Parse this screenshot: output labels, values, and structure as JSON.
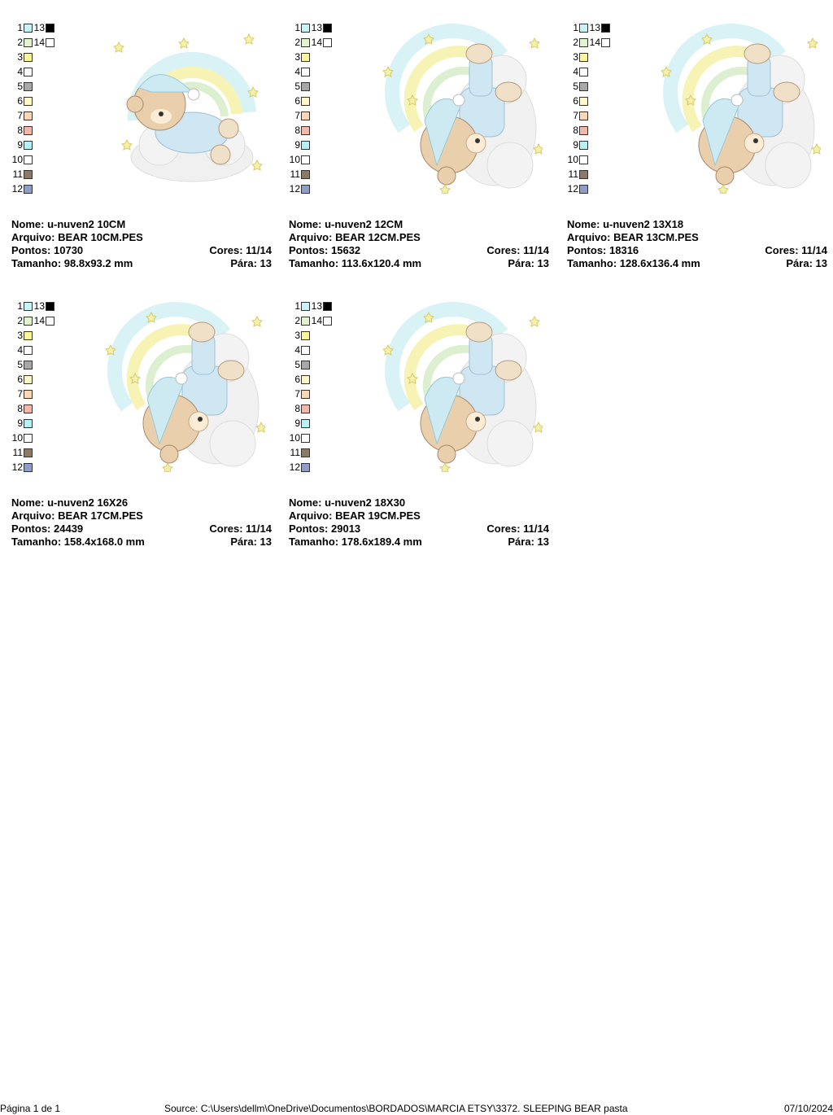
{
  "swatch_colors": [
    "#c9f3fb",
    "#e2f3cf",
    "#fbf49a",
    "#ffffff",
    "#a8a8a8",
    "#fff7c8",
    "#fcd6b5",
    "#f5b7a9",
    "#b7f1f8",
    "#ffffff",
    "#8c7a66",
    "#8e9ec8",
    "#000000",
    "#ffffff"
  ],
  "swatch_labels": [
    "1",
    "2",
    "3",
    "4",
    "5",
    "6",
    "7",
    "8",
    "9",
    "10",
    "11",
    "12",
    "13",
    "14"
  ],
  "labels": {
    "nome": "Nome:",
    "arquivo": "Arquivo:",
    "pontos": "Pontos:",
    "cores": "Cores:",
    "tamanho": "Tamanho:",
    "para": "Pára:"
  },
  "designs": [
    {
      "nome": "u-nuven2 10CM",
      "arquivo": "BEAR 10CM.PES",
      "pontos": "10730",
      "cores": "11/14",
      "tamanho": "98.8x93.2 mm",
      "para": "13"
    },
    {
      "nome": "u-nuven2 12CM",
      "arquivo": "BEAR 12CM.PES",
      "pontos": "15632",
      "cores": "11/14",
      "tamanho": "113.6x120.4 mm",
      "para": "13"
    },
    {
      "nome": "u-nuven2 13X18",
      "arquivo": "BEAR 13CM.PES",
      "pontos": "18316",
      "cores": "11/14",
      "tamanho": "128.6x136.4 mm",
      "para": "13"
    },
    {
      "nome": "u-nuven2 16X26",
      "arquivo": "BEAR 17CM.PES",
      "pontos": "24439",
      "cores": "11/14",
      "tamanho": "158.4x168.0 mm",
      "para": "13"
    },
    {
      "nome": "u-nuven2 18X30",
      "arquivo": "BEAR 19CM.PES",
      "pontos": "29013",
      "cores": "11/14",
      "tamanho": "178.6x189.4 mm",
      "para": "13"
    }
  ],
  "footer": {
    "page": "Página 1 de 1",
    "source": "Source: C:\\Users\\dellm\\OneDrive\\Documentos\\BORDADOS\\MARCIA ETSY\\3372. SLEEPING BEAR pasta",
    "date": "07/10/2024"
  }
}
